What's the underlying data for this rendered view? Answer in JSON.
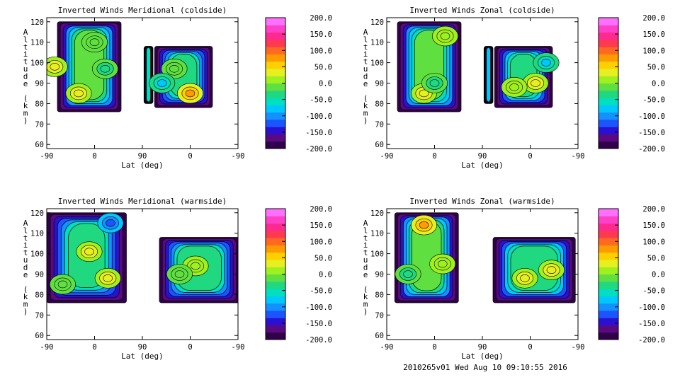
{
  "chart_data": [
    {
      "type": "heatmap",
      "title": "Inverted Winds Meridional (coldside)",
      "xlabel": "Lat (deg)",
      "ylabel": "Altitude (km)",
      "x_ticks": [
        "-90",
        "0",
        "90",
        "0",
        "-90"
      ],
      "y_ticks": [
        "60",
        "70",
        "80",
        "90",
        "100",
        "110",
        "120"
      ],
      "ylim": [
        58,
        122
      ],
      "colorbar": {
        "ticks": [
          "200.0",
          "150.0",
          "100.0",
          "50.0",
          "0.0",
          "-50.0",
          "-100.0",
          "-150.0",
          "-200.0"
        ],
        "range": [
          -200,
          200
        ],
        "colors": [
          "#30004a",
          "#5a0a80",
          "#2a10d0",
          "#1a55ff",
          "#1490ff",
          "#00c8ff",
          "#00e0c0",
          "#20d880",
          "#60e040",
          "#a0f020",
          "#e6f020",
          "#ffd000",
          "#ff9a00",
          "#ff6a20",
          "#ff3a50",
          "#ff2a90",
          "#ff40c8",
          "#ff70ff"
        ]
      },
      "regions": [
        {
          "lat_from": -70,
          "lat_to": 50,
          "alt_from": 76,
          "alt_to": 120,
          "mean": -10
        },
        {
          "lat_from": 93,
          "lat_to": 110,
          "alt_from": 80,
          "alt_to": 108,
          "mean": -60
        },
        {
          "lat_from": 113,
          "lat_to": 222,
          "alt_from": 78,
          "alt_to": 108,
          "mean": -40
        }
      ],
      "features": [
        {
          "lat": -75,
          "alt": 98,
          "value": 40
        },
        {
          "lat": -30,
          "alt": 85,
          "value": 30
        },
        {
          "lat": 0,
          "alt": 110,
          "value": -20
        },
        {
          "lat": 20,
          "alt": 97,
          "value": -30
        },
        {
          "lat": 180,
          "alt": 85,
          "value": 80
        },
        {
          "lat": 150,
          "alt": 97,
          "value": -20
        },
        {
          "lat": 127,
          "alt": 90,
          "value": -70
        }
      ]
    },
    {
      "type": "heatmap",
      "title": "Inverted Winds Zonal (coldside)",
      "xlabel": "Lat (deg)",
      "ylabel": "Altitude (km)",
      "x_ticks": [
        "-90",
        "0",
        "90",
        "0",
        "-90"
      ],
      "y_ticks": [
        "60",
        "70",
        "80",
        "90",
        "100",
        "110",
        "120"
      ],
      "ylim": [
        58,
        122
      ],
      "colorbar": {
        "ticks": [
          "200.0",
          "150.0",
          "100.0",
          "50.0",
          "0.0",
          "-50.0",
          "-100.0",
          "-150.0",
          "-200.0"
        ],
        "range": [
          -200,
          200
        ],
        "colors": [
          "#30004a",
          "#5a0a80",
          "#2a10d0",
          "#1a55ff",
          "#1490ff",
          "#00c8ff",
          "#00e0c0",
          "#20d880",
          "#60e040",
          "#a0f020",
          "#e6f020",
          "#ffd000",
          "#ff9a00",
          "#ff6a20",
          "#ff3a50",
          "#ff2a90",
          "#ff40c8",
          "#ff70ff"
        ]
      },
      "regions": [
        {
          "lat_from": -70,
          "lat_to": 50,
          "alt_from": 76,
          "alt_to": 120,
          "mean": -15
        },
        {
          "lat_from": 93,
          "lat_to": 110,
          "alt_from": 80,
          "alt_to": 108,
          "mean": -80
        },
        {
          "lat_from": 113,
          "lat_to": 222,
          "alt_from": 78,
          "alt_to": 108,
          "mean": -30
        }
      ],
      "features": [
        {
          "lat": 20,
          "alt": 113,
          "value": 20
        },
        {
          "lat": -20,
          "alt": 85,
          "value": 40
        },
        {
          "lat": 0,
          "alt": 90,
          "value": -30
        },
        {
          "lat": 190,
          "alt": 90,
          "value": 30
        },
        {
          "lat": 210,
          "alt": 100,
          "value": -70
        },
        {
          "lat": 150,
          "alt": 88,
          "value": 0
        }
      ]
    },
    {
      "type": "heatmap",
      "title": "Inverted Winds Meridional (warmside)",
      "xlabel": "Lat (deg)",
      "ylabel": "Altitude (km)",
      "x_ticks": [
        "-90",
        "0",
        "90",
        "0",
        "-90"
      ],
      "y_ticks": [
        "60",
        "70",
        "80",
        "90",
        "100",
        "110",
        "120"
      ],
      "ylim": [
        58,
        122
      ],
      "colorbar": {
        "ticks": [
          "200.0",
          "150.0",
          "100.0",
          "50.0",
          "0.0",
          "-50.0",
          "-100.0",
          "-150.0",
          "-200.0"
        ],
        "range": [
          -200,
          200
        ],
        "colors": [
          "#30004a",
          "#5a0a80",
          "#2a10d0",
          "#1a55ff",
          "#1490ff",
          "#00c8ff",
          "#00e0c0",
          "#20d880",
          "#60e040",
          "#a0f020",
          "#e6f020",
          "#ffd000",
          "#ff9a00",
          "#ff6a20",
          "#ff3a50",
          "#ff2a90",
          "#ff40c8",
          "#ff70ff"
        ]
      },
      "regions": [
        {
          "lat_from": -90,
          "lat_to": 60,
          "alt_from": 76,
          "alt_to": 120,
          "mean": -40
        },
        {
          "lat_from": 122,
          "lat_to": 272,
          "alt_from": 76,
          "alt_to": 108,
          "mean": -35
        }
      ],
      "features": [
        {
          "lat": -10,
          "alt": 101,
          "value": 40
        },
        {
          "lat": 25,
          "alt": 88,
          "value": 30
        },
        {
          "lat": -60,
          "alt": 85,
          "value": -10
        },
        {
          "lat": 30,
          "alt": 115,
          "value": -130
        },
        {
          "lat": 190,
          "alt": 94,
          "value": 20
        },
        {
          "lat": 160,
          "alt": 90,
          "value": -20
        }
      ]
    },
    {
      "type": "heatmap",
      "title": "Inverted Winds Zonal (warmside)",
      "xlabel": "Lat (deg)",
      "ylabel": "Altitude (km)",
      "x_ticks": [
        "-90",
        "0",
        "90",
        "0",
        "-90"
      ],
      "y_ticks": [
        "60",
        "70",
        "80",
        "90",
        "100",
        "110",
        "120"
      ],
      "ylim": [
        58,
        122
      ],
      "colorbar": {
        "ticks": [
          "200.0",
          "150.0",
          "100.0",
          "50.0",
          "0.0",
          "-50.0",
          "-100.0",
          "-150.0",
          "-200.0"
        ],
        "range": [
          -200,
          200
        ],
        "colors": [
          "#30004a",
          "#5a0a80",
          "#2a10d0",
          "#1a55ff",
          "#1490ff",
          "#00c8ff",
          "#00e0c0",
          "#20d880",
          "#60e040",
          "#a0f020",
          "#e6f020",
          "#ffd000",
          "#ff9a00",
          "#ff6a20",
          "#ff3a50",
          "#ff2a90",
          "#ff40c8",
          "#ff70ff"
        ]
      },
      "regions": [
        {
          "lat_from": -75,
          "lat_to": 45,
          "alt_from": 76,
          "alt_to": 120,
          "mean": -10
        },
        {
          "lat_from": 110,
          "lat_to": 265,
          "alt_from": 76,
          "alt_to": 108,
          "mean": -30
        }
      ],
      "features": [
        {
          "lat": -20,
          "alt": 114,
          "value": 70
        },
        {
          "lat": 15,
          "alt": 95,
          "value": 20
        },
        {
          "lat": -50,
          "alt": 90,
          "value": -30
        },
        {
          "lat": 170,
          "alt": 88,
          "value": 40
        },
        {
          "lat": 220,
          "alt": 92,
          "value": 30
        }
      ]
    }
  ],
  "footer": "2010265v01 Wed Aug 10 09:10:55 2016"
}
